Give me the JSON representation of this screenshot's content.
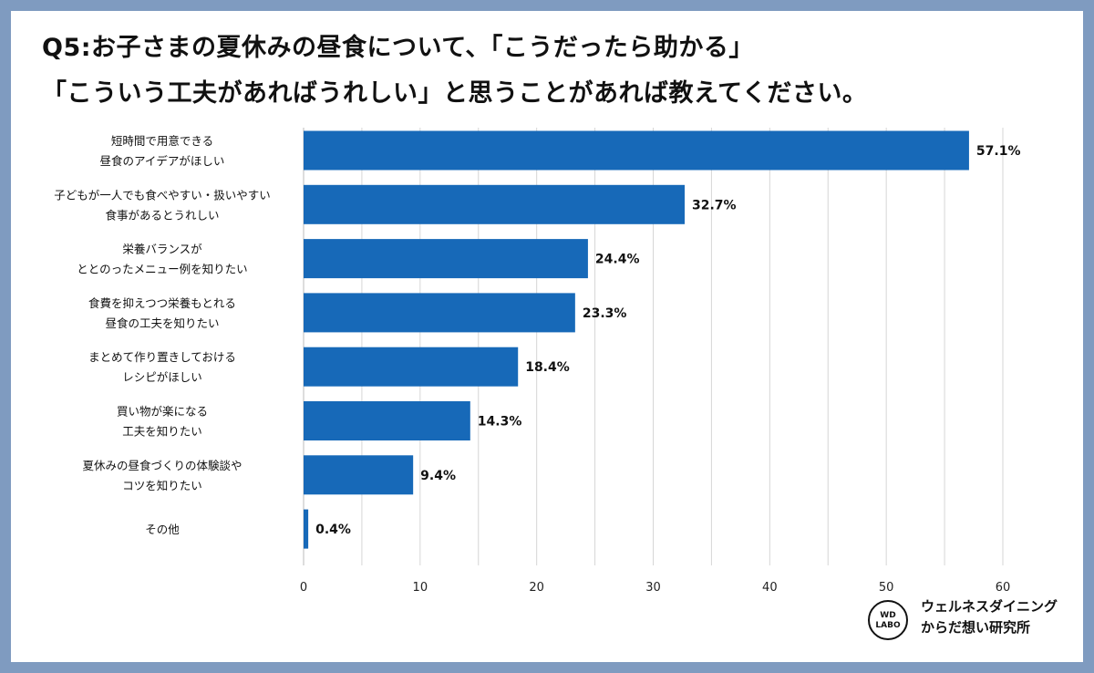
{
  "title": "Q5:お子さまの夏休みの昼食について、「こうだったら助かる」\n「こういう工夫があればうれしい」と思うことがあれば教えてください。",
  "logo": {
    "badge_line1": "WD",
    "badge_line2": "LABO",
    "text_line1": "ウェルネスダイニング",
    "text_line2": "からだ想い研究所"
  },
  "colors": {
    "bar": "#1769b8",
    "background": "#7f9bc0",
    "grid": "#d6d6d6"
  },
  "chart_data": {
    "type": "bar",
    "orientation": "horizontal",
    "categories": [
      "短時間で用意できる\n昼食のアイデアがほしい",
      "子どもが一人でも食べやすい・扱いやすい\n食事があるとうれしい",
      "栄養バランスが\nととのったメニュー例を知りたい",
      "食費を抑えつつ栄養もとれる\n昼食の工夫を知りたい",
      "まとめて作り置きしておける\nレシピがほしい",
      "買い物が楽になる\n工夫を知りたい",
      "夏休みの昼食づくりの体験談や\nコツを知りたい",
      "その他"
    ],
    "values": [
      57.1,
      32.7,
      24.4,
      23.3,
      18.4,
      14.3,
      9.4,
      0.4
    ],
    "value_labels": [
      "57.1%",
      "32.7%",
      "24.4%",
      "23.3%",
      "18.4%",
      "14.3%",
      "9.4%",
      "0.4%"
    ],
    "xlim": [
      0,
      60
    ],
    "xticks": [
      0,
      10,
      20,
      30,
      40,
      50,
      60
    ],
    "grid": true
  }
}
